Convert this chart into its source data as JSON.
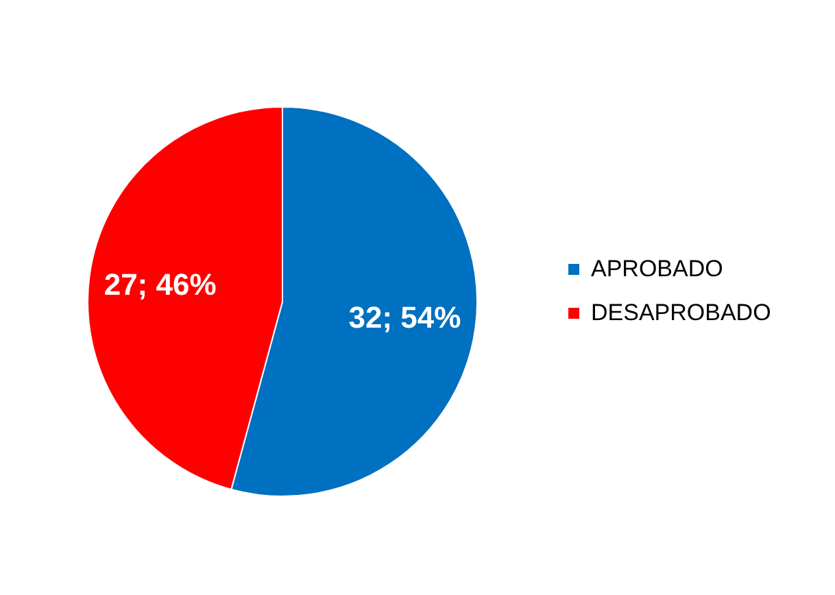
{
  "chart_data": {
    "type": "pie",
    "categories": [
      "APROBADO",
      "DESAPROBADO"
    ],
    "values": [
      32,
      27
    ],
    "colors": [
      "#0070c0",
      "#ff0000"
    ],
    "value_labels": [
      "32; 54%",
      "27; 46%"
    ],
    "legend": "right"
  }
}
